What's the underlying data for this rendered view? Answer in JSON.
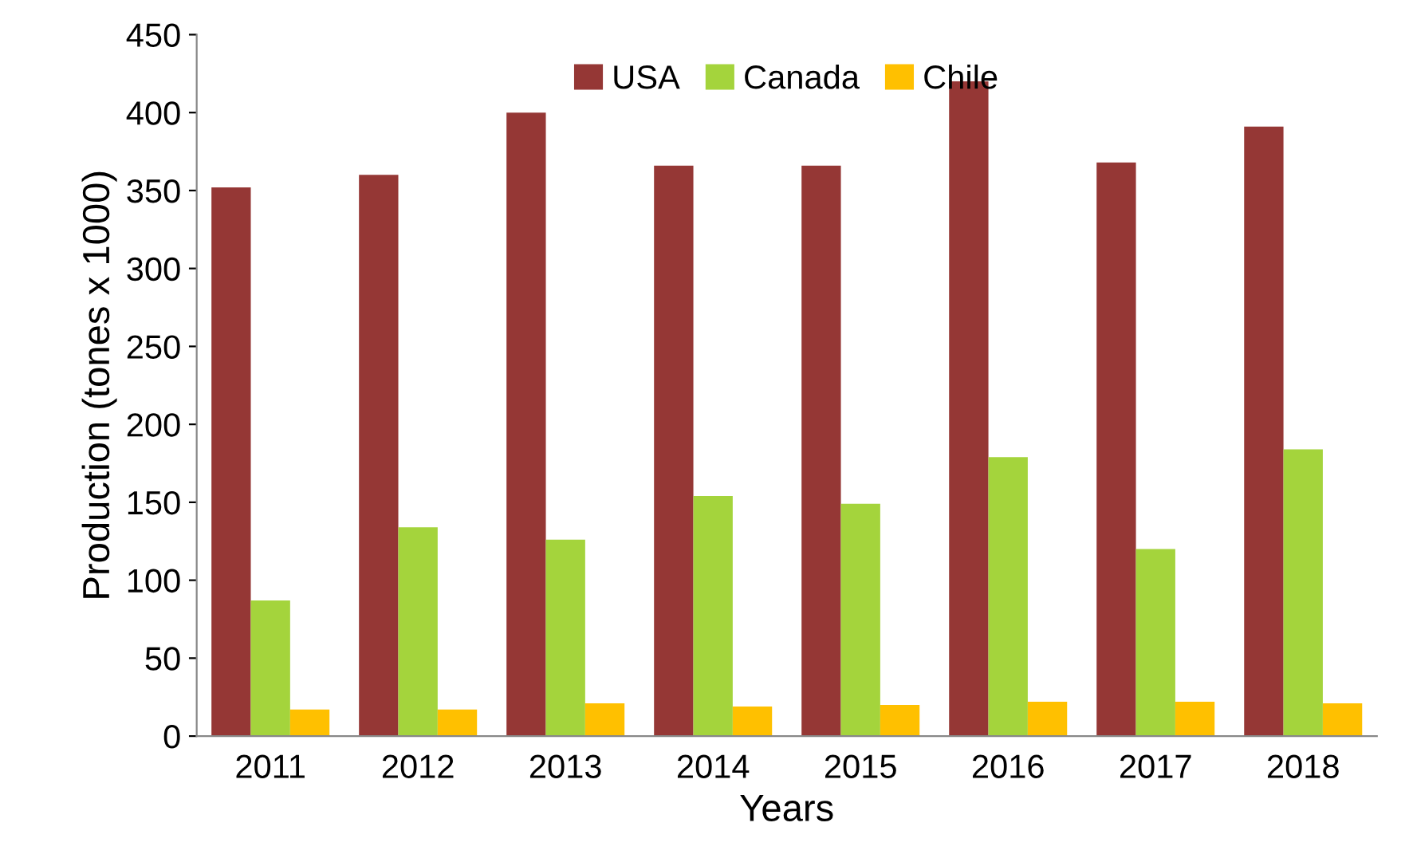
{
  "chart_data": {
    "type": "bar",
    "xlabel": "Years",
    "ylabel": "Production (tones x 1000)",
    "categories": [
      "2011",
      "2012",
      "2013",
      "2014",
      "2015",
      "2016",
      "2017",
      "2018"
    ],
    "series": [
      {
        "name": "USA",
        "color": "#953735",
        "values": [
          352,
          360,
          400,
          366,
          366,
          420,
          368,
          391
        ]
      },
      {
        "name": "Canada",
        "color": "#a4d43c",
        "values": [
          87,
          134,
          126,
          154,
          149,
          179,
          120,
          184
        ]
      },
      {
        "name": "Chile",
        "color": "#ffc000",
        "values": [
          17,
          17,
          21,
          19,
          20,
          22,
          22,
          21
        ]
      }
    ],
    "ylim": [
      0,
      450
    ],
    "yticks": [
      0,
      50,
      100,
      150,
      200,
      250,
      300,
      350,
      400,
      450
    ],
    "grid": false,
    "legend": "top"
  }
}
